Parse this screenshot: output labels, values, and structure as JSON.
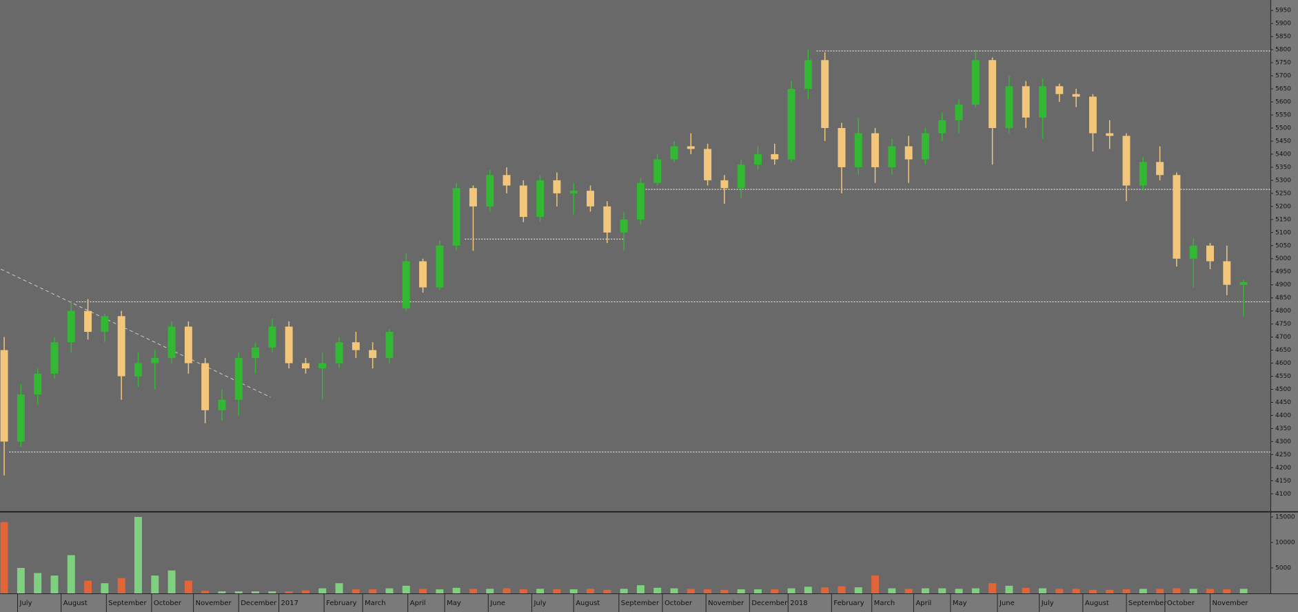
{
  "chart_data": {
    "type": "candlestick",
    "open": [
      4650,
      4300,
      4480,
      4560,
      4680,
      4800,
      4720,
      4780,
      4550,
      4600,
      4620,
      4740,
      4600,
      4420,
      4460,
      4620,
      4660,
      4740,
      4600,
      4580,
      4600,
      4680,
      4650,
      4620,
      4810,
      4990,
      4890,
      5050,
      5270,
      5200,
      5320,
      5280,
      5160,
      5300,
      5250,
      5260,
      5200,
      5100,
      5150,
      5290,
      5380,
      5430,
      5420,
      5300,
      5270,
      5360,
      5400,
      5380,
      5650,
      5760,
      5500,
      5350,
      5480,
      5350,
      5430,
      5380,
      5480,
      5530,
      5590,
      5760,
      5500,
      5660,
      5540,
      5660,
      5630,
      5620,
      5480,
      5470,
      5280,
      5370,
      5320,
      5000,
      5050,
      4990,
      4900
    ],
    "high": [
      4700,
      4520,
      4580,
      4700,
      4840,
      4845,
      4790,
      4800,
      4640,
      4650,
      4760,
      4760,
      4620,
      4500,
      4640,
      4680,
      4770,
      4760,
      4620,
      4640,
      4700,
      4720,
      4680,
      4730,
      5020,
      5000,
      5070,
      5290,
      5280,
      5340,
      5350,
      5300,
      5320,
      5330,
      5290,
      5280,
      5220,
      5180,
      5310,
      5400,
      5450,
      5480,
      5440,
      5320,
      5380,
      5430,
      5440,
      5680,
      5800,
      5790,
      5520,
      5540,
      5500,
      5460,
      5470,
      5500,
      5560,
      5610,
      5800,
      5770,
      5700,
      5680,
      5690,
      5670,
      5650,
      5630,
      5530,
      5480,
      5390,
      5430,
      5330,
      5080,
      5060,
      5050,
      4920
    ],
    "low": [
      4170,
      4280,
      4440,
      4540,
      4640,
      4690,
      4680,
      4460,
      4510,
      4500,
      4600,
      4560,
      4370,
      4380,
      4400,
      4560,
      4640,
      4580,
      4560,
      4460,
      4580,
      4620,
      4580,
      4600,
      4800,
      4870,
      4880,
      5030,
      5030,
      5180,
      5250,
      5140,
      5140,
      5200,
      5170,
      5180,
      5060,
      5030,
      5130,
      5280,
      5370,
      5400,
      5280,
      5210,
      5230,
      5340,
      5360,
      5370,
      5610,
      5450,
      5250,
      5320,
      5290,
      5320,
      5290,
      5360,
      5450,
      5480,
      5580,
      5360,
      5480,
      5500,
      5460,
      5600,
      5580,
      5410,
      5420,
      5220,
      5260,
      5300,
      4970,
      4890,
      4960,
      4860,
      4780
    ],
    "close": [
      4300,
      4480,
      4560,
      4680,
      4800,
      4720,
      4780,
      4550,
      4600,
      4620,
      4740,
      4600,
      4420,
      4460,
      4620,
      4660,
      4740,
      4600,
      4580,
      4600,
      4680,
      4650,
      4620,
      4720,
      4990,
      4890,
      5050,
      5270,
      5200,
      5320,
      5280,
      5160,
      5300,
      5250,
      5260,
      5200,
      5100,
      5150,
      5290,
      5380,
      5430,
      5420,
      5300,
      5270,
      5360,
      5400,
      5380,
      5650,
      5760,
      5500,
      5350,
      5480,
      5350,
      5430,
      5380,
      5480,
      5530,
      5590,
      5760,
      5500,
      5660,
      5540,
      5660,
      5630,
      5620,
      5480,
      5470,
      5280,
      5370,
      5320,
      5000,
      5050,
      4990,
      4900,
      4910
    ],
    "volume": [
      14000,
      5000,
      4000,
      3500,
      7500,
      2500,
      2000,
      3000,
      15000,
      3500,
      4500,
      2500,
      500,
      400,
      400,
      400,
      400,
      400,
      600,
      1000,
      2000,
      800,
      800,
      1000,
      1500,
      900,
      800,
      1100,
      900,
      900,
      1000,
      800,
      900,
      800,
      800,
      900,
      700,
      900,
      1600,
      1100,
      1000,
      900,
      800,
      700,
      800,
      800,
      800,
      1000,
      1300,
      1200,
      1400,
      1200,
      3500,
      1000,
      900,
      1000,
      1000,
      900,
      1000,
      2000,
      1500,
      1100,
      1000,
      900,
      900,
      700,
      700,
      800,
      900,
      900,
      1000,
      900,
      900,
      800,
      900
    ],
    "up_color": "#33b833",
    "down_color": "#f2c77c",
    "volume_up_color": "#7fd07f",
    "volume_down_color": "#e0663a",
    "ylim": [
      4035,
      5990
    ],
    "yticks": [
      4100,
      4150,
      4200,
      4250,
      4300,
      4350,
      4400,
      4450,
      4500,
      4550,
      4600,
      4650,
      4700,
      4750,
      4800,
      4850,
      4900,
      4950,
      5000,
      5050,
      5100,
      5150,
      5200,
      5250,
      5300,
      5350,
      5400,
      5450,
      5500,
      5550,
      5600,
      5650,
      5700,
      5750,
      5800,
      5850,
      5900,
      5950
    ],
    "vlim": [
      0,
      15800
    ],
    "vticks": [
      5000,
      10000,
      15000
    ],
    "xlim": [
      -0.25,
      75.6
    ],
    "xticks": [
      {
        "value": 0.8,
        "label": "July"
      },
      {
        "value": 3.4,
        "label": "August"
      },
      {
        "value": 6.1,
        "label": "September"
      },
      {
        "value": 8.8,
        "label": "October"
      },
      {
        "value": 11.3,
        "label": "November"
      },
      {
        "value": 14.0,
        "label": "December"
      },
      {
        "value": 16.4,
        "label": "2017"
      },
      {
        "value": 19.1,
        "label": "February"
      },
      {
        "value": 21.4,
        "label": "March"
      },
      {
        "value": 24.1,
        "label": "April"
      },
      {
        "value": 26.3,
        "label": "May"
      },
      {
        "value": 28.9,
        "label": "June"
      },
      {
        "value": 31.5,
        "label": "July"
      },
      {
        "value": 34.0,
        "label": "August"
      },
      {
        "value": 36.7,
        "label": "September"
      },
      {
        "value": 39.3,
        "label": "October"
      },
      {
        "value": 41.9,
        "label": "November"
      },
      {
        "value": 44.5,
        "label": "December"
      },
      {
        "value": 46.8,
        "label": "2018"
      },
      {
        "value": 49.4,
        "label": "February"
      },
      {
        "value": 51.8,
        "label": "March"
      },
      {
        "value": 54.3,
        "label": "April"
      },
      {
        "value": 56.5,
        "label": "May"
      },
      {
        "value": 59.3,
        "label": "June"
      },
      {
        "value": 61.8,
        "label": "July"
      },
      {
        "value": 64.4,
        "label": "August"
      },
      {
        "value": 67.0,
        "label": "September"
      },
      {
        "value": 69.3,
        "label": "October"
      },
      {
        "value": 72.0,
        "label": "November"
      }
    ],
    "levels": [
      {
        "value": 5795,
        "from": 48.5,
        "to": 75.6
      },
      {
        "value": 5265,
        "from": 37.8,
        "to": 75.6
      },
      {
        "value": 5075,
        "from": 27.5,
        "to": 37
      },
      {
        "value": 4835,
        "from": 4.3,
        "to": 75.6
      },
      {
        "value": 4260,
        "from": 0.3,
        "to": 75.6
      }
    ],
    "trendline": {
      "x": [
        -0.2,
        15.9
      ],
      "y": [
        4960,
        4470
      ]
    }
  }
}
